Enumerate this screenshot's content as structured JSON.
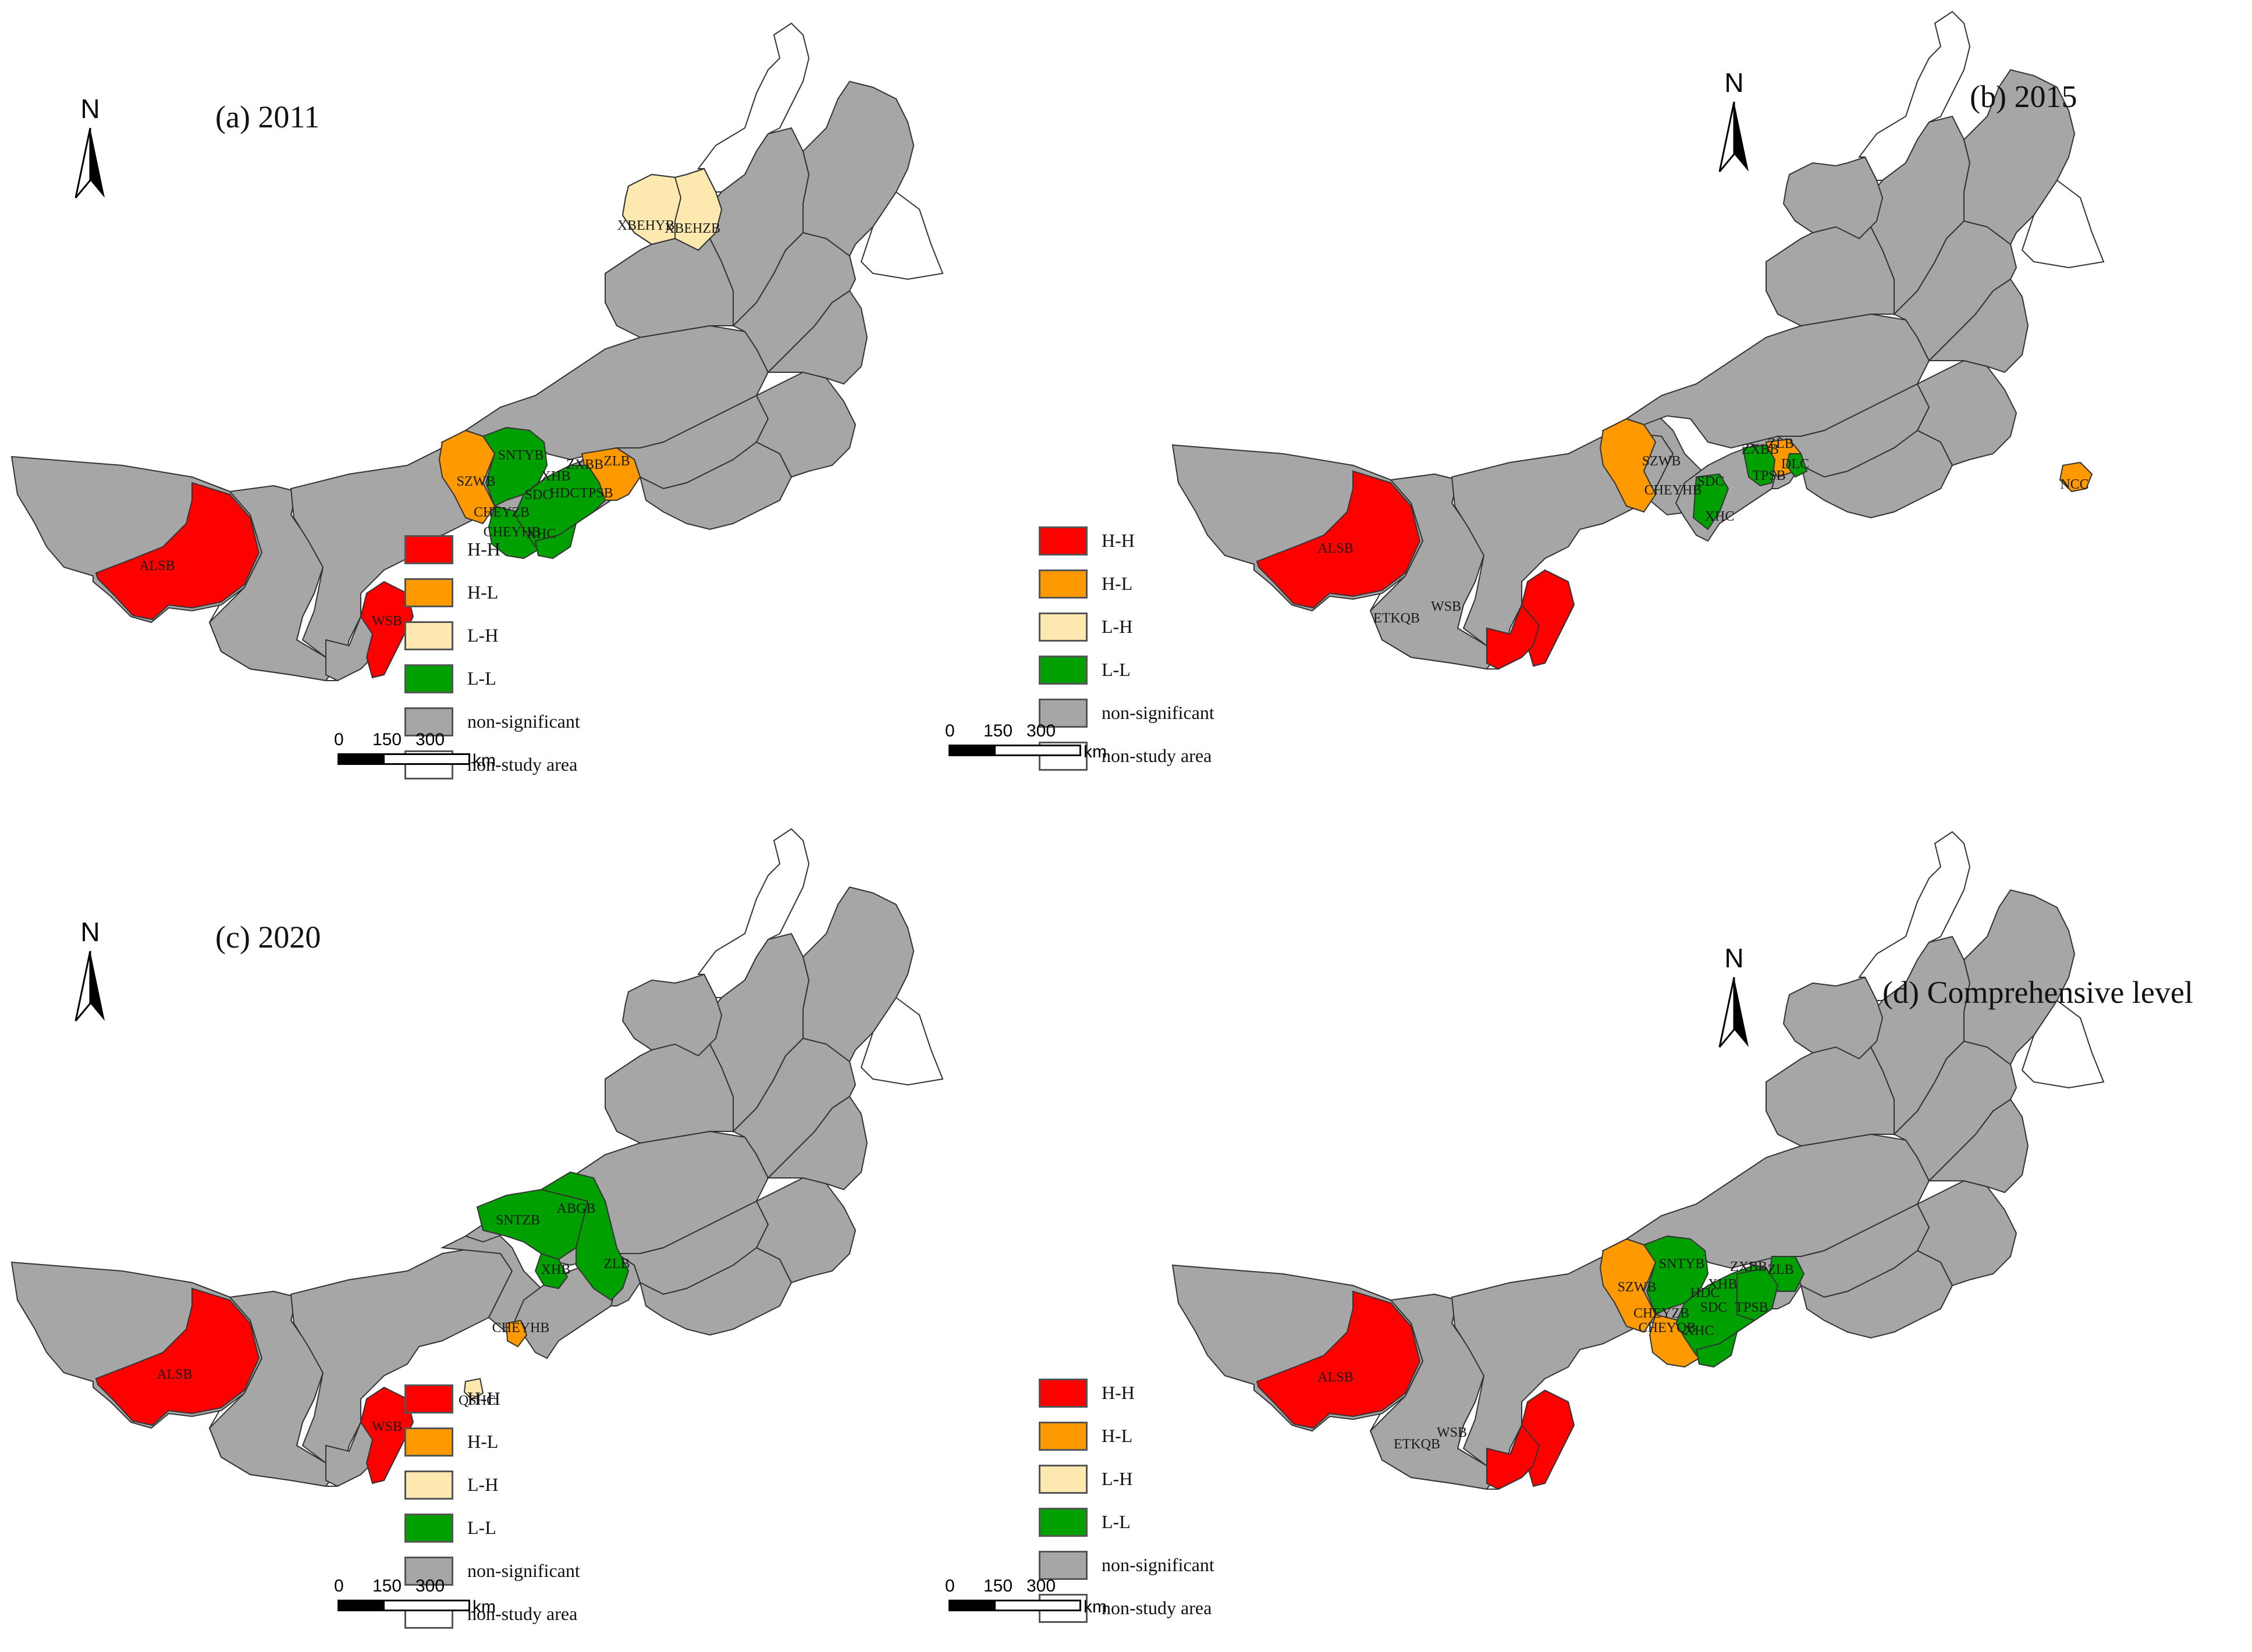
{
  "colors": {
    "H-H": "#ff0000",
    "H-L": "#ff9900",
    "L-H": "#fde9b0",
    "L-L": "#00a000",
    "non-significant": "#a6a6a6",
    "non-study area": "#ffffff",
    "border": "#333333"
  },
  "north_letter": "N",
  "scale": {
    "ticks": [
      "0",
      "150",
      "300"
    ],
    "unit": "km"
  },
  "legend": [
    {
      "key": "H-H",
      "label": "H-H"
    },
    {
      "key": "H-L",
      "label": "H-L"
    },
    {
      "key": "L-H",
      "label": "L-H"
    },
    {
      "key": "L-L",
      "label": "L-L"
    },
    {
      "key": "non-significant",
      "label": "non-significant"
    },
    {
      "key": "non-study area",
      "label": "non-study area"
    }
  ],
  "panels": [
    {
      "title": "(a)  2011",
      "clusters": {
        "H-H": [
          "ALSB",
          "WSB"
        ],
        "H-L": [
          "SZWB",
          "ZLB"
        ],
        "L-H": [
          "XBEHYB",
          "XBEHZB"
        ],
        "L-L": [
          "SNTYB",
          "XHB",
          "ZXBB",
          "HDC",
          "TPSB",
          "SDC",
          "CHEYZB",
          "CHEYHB",
          "XHC"
        ]
      },
      "labels": [
        "ALSB",
        "WSB",
        "SZWB",
        "ZLB",
        "XBEHYB",
        "XBEHZB",
        "SNTYB",
        "XHB",
        "ZXBB",
        "HDC",
        "TPSB",
        "SDC",
        "CHEYZB",
        "CHEYHB",
        "XHC"
      ]
    },
    {
      "title": "(b)  2015",
      "clusters": {
        "H-H": [
          "ALSB",
          "ETKQB",
          "WSB"
        ],
        "H-L": [
          "SZWB",
          "ZLB",
          "NCC"
        ],
        "L-H": [],
        "L-L": [
          "CHEYHB",
          "SDC",
          "XHC",
          "ZXBB",
          "TPSB",
          "DLC"
        ]
      },
      "labels": [
        "ALSB",
        "ETKQB",
        "WSB",
        "SZWB",
        "ZLB",
        "NCC",
        "CHEYHB",
        "SDC",
        "XHC",
        "ZXBB",
        "TPSB",
        "DLC"
      ]
    },
    {
      "title": "(c) 2020",
      "clusters": {
        "H-H": [
          "ALSB",
          "WSB"
        ],
        "H-L": [
          "CHEYHB"
        ],
        "L-H": [
          "QSHC"
        ],
        "L-L": [
          "SNTZB",
          "ABGB",
          "XHB",
          "ZLB"
        ]
      },
      "labels": [
        "ALSB",
        "WSB",
        "CHEYHB",
        "QSHC",
        "SNTZB",
        "ABGB",
        "XHB",
        "ZLB"
      ]
    },
    {
      "title": "(d) Comprehensive level",
      "clusters": {
        "H-H": [
          "ALSB",
          "ETKQB",
          "WSB"
        ],
        "H-L": [
          "SZWB",
          "CHEYZB"
        ],
        "L-H": [],
        "L-L": [
          "SNTYB",
          "ZXBB",
          "XHB",
          "ZLB",
          "HDC",
          "SDC",
          "TPSB",
          "CHEYQB",
          "XHC"
        ]
      },
      "labels": [
        "ALSB",
        "ETKQB",
        "WSB",
        "SZWB",
        "CHEYZB",
        "SNTYB",
        "ZXBB",
        "XHB",
        "ZLB",
        "HDC",
        "SDC",
        "TPSB",
        "CHEYQB",
        "XHC"
      ]
    }
  ]
}
